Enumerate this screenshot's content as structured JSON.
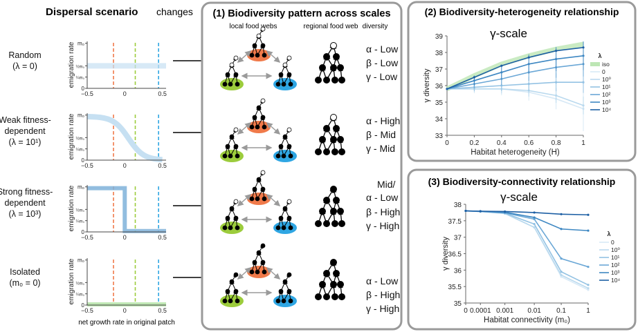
{
  "left": {
    "title": "Dispersal scenario",
    "changes": "changes",
    "scenarios": [
      {
        "name": "Random",
        "param": "(λ = 0)"
      },
      {
        "name": "Weak fitness-",
        "name2": "dependent",
        "param": "(λ = 10¹)"
      },
      {
        "name": "Strong fitness-",
        "name2": "dependent",
        "param": "(λ = 10³)"
      },
      {
        "name": "Isolated",
        "param": "(m₀ = 0)"
      }
    ],
    "ylabel": "emigration rate",
    "yticks": [
      "m₀",
      "½m₀",
      "¼m₀",
      "0"
    ],
    "xticks": [
      "−0.5",
      "0",
      "0.5"
    ],
    "xlabel": "net growth rate in original patch"
  },
  "middle": {
    "title": "(1) Biodiversity pattern across scales",
    "col_local": "local food webs",
    "col_regional": "regional food web",
    "col_diversity": "diversity",
    "rows": [
      {
        "alpha": "α - Low",
        "beta": "β - Low",
        "gamma": "γ - Low"
      },
      {
        "alpha": "α - High",
        "beta": "β - Mid",
        "gamma": "γ - Mid"
      },
      {
        "pre": "Mid/",
        "alpha": "α - Low",
        "beta": "β - High",
        "gamma": "γ - High"
      },
      {
        "alpha": "α - Low",
        "beta": "β - High",
        "gamma": "γ - High"
      }
    ]
  },
  "colors": {
    "red": "#f07a4a",
    "green": "#9ccc3c",
    "blue": "#2fa6e3",
    "panel_border": "#999999",
    "band": "#c6e0f2",
    "band_green": "#bfe7b3"
  },
  "chart_data": [
    {
      "type": "line",
      "panel_title": "(2) Biodiversity-heterogeneity relationship",
      "title": "γ-scale",
      "xlabel": "Habitat heterogeneity (H)",
      "ylabel": "γ diversity",
      "x": [
        0,
        0.2,
        0.4,
        0.6,
        0.8,
        1
      ],
      "xticks": [
        "0",
        "0.2",
        "0.4",
        "0.6",
        "0.8",
        "1"
      ],
      "ylim": [
        33,
        39
      ],
      "yticks": [
        "33",
        "34",
        "35",
        "36",
        "37",
        "38",
        "39"
      ],
      "legend_title": "λ",
      "legend": [
        "iso",
        "0",
        "10⁰",
        "10¹",
        "10²",
        "10³",
        "10⁴"
      ],
      "series": [
        {
          "name": "iso",
          "values": [
            35.8,
            36.6,
            37.3,
            37.8,
            38.2,
            38.5
          ]
        },
        {
          "name": "0",
          "values": [
            35.8,
            35.8,
            35.8,
            35.6,
            35.2,
            34.6
          ]
        },
        {
          "name": "10⁰",
          "values": [
            35.8,
            35.8,
            35.8,
            35.7,
            35.4,
            34.8
          ]
        },
        {
          "name": "10¹",
          "values": [
            35.8,
            35.9,
            36.0,
            36.1,
            36.2,
            36.2
          ]
        },
        {
          "name": "10²",
          "values": [
            35.8,
            36.1,
            36.4,
            36.8,
            37.1,
            37.3
          ]
        },
        {
          "name": "10³",
          "values": [
            35.8,
            36.3,
            36.8,
            37.3,
            37.6,
            37.8
          ]
        },
        {
          "name": "10⁴",
          "values": [
            35.8,
            36.5,
            37.2,
            37.7,
            38.1,
            38.3
          ]
        }
      ]
    },
    {
      "type": "line",
      "panel_title": "(3) Biodiversity-connectivity relationship",
      "title": "γ-scale",
      "xlabel": "Habitat connectivity (m₀)",
      "ylabel": "γ diversity",
      "x": [
        0,
        0.0001,
        0.001,
        0.01,
        0.1,
        1
      ],
      "xticks": [
        "0",
        "0.0001",
        "0.001",
        "0.01",
        "0.1",
        "1"
      ],
      "ylim": [
        35.0,
        38.0
      ],
      "yticks": [
        "35",
        "35.5",
        "36",
        "36.5",
        "37",
        "37.5",
        "38"
      ],
      "legend_title": "λ",
      "legend": [
        "0",
        "10⁰",
        "10¹",
        "10²",
        "10³",
        "10⁴"
      ],
      "series": [
        {
          "name": "0",
          "values": [
            37.8,
            37.78,
            37.72,
            37.3,
            35.8,
            35.4
          ]
        },
        {
          "name": "10⁰",
          "values": [
            37.8,
            37.78,
            37.72,
            37.3,
            35.85,
            35.45
          ]
        },
        {
          "name": "10¹",
          "values": [
            37.8,
            37.78,
            37.73,
            37.4,
            35.95,
            35.55
          ]
        },
        {
          "name": "10²",
          "values": [
            37.8,
            37.78,
            37.74,
            37.55,
            36.35,
            36.1
          ]
        },
        {
          "name": "10³",
          "values": [
            37.8,
            37.79,
            37.76,
            37.6,
            37.25,
            37.2
          ]
        },
        {
          "name": "10⁴",
          "values": [
            37.8,
            37.79,
            37.78,
            37.75,
            37.7,
            37.68
          ]
        }
      ]
    }
  ]
}
